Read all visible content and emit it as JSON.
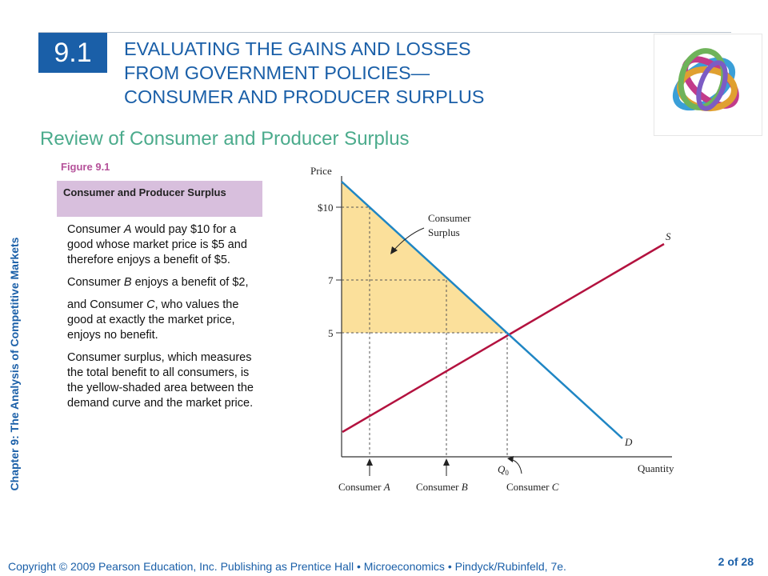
{
  "header": {
    "section_number": "9.1",
    "title_lines": [
      "EVALUATING THE GAINS AND LOSSES",
      "FROM GOVERNMENT POLICIES—",
      "CONSUMER AND PRODUCER SURPLUS"
    ],
    "subtitle": "Review of Consumer and Producer Surplus"
  },
  "sidebar": {
    "chapter_label": "Chapter 9:  The Analysis of Competitive Markets"
  },
  "figure": {
    "label": "Figure 9.1",
    "caption": "Consumer and Producer Surplus",
    "paragraphs": [
      "Consumer A would pay $10 for a good whose market price is $5 and therefore enjoys a benefit of $5.",
      "Consumer B enjoys a benefit of $2,",
      "and Consumer C, who values the good at exactly the market price, enjoys no benefit.",
      "Consumer surplus, which measures the total benefit to all consumers, is the yellow-shaded area between the demand curve and the market price."
    ]
  },
  "diagram": {
    "axis_y_label": "Price",
    "axis_x_label": "Quantity",
    "price_ticks": [
      "$10",
      "7",
      "5"
    ],
    "surplus_label_line1": "Consumer",
    "surplus_label_line2": "Surplus",
    "supply_label": "S",
    "demand_label": "D",
    "q0_label": "Q",
    "q0_sub": "0",
    "consumer_a": "Consumer",
    "consumer_a_letter": "A",
    "consumer_b": "Consumer",
    "consumer_b_letter": "B",
    "consumer_c": "Consumer",
    "consumer_c_letter": "C",
    "colors": {
      "demand": "#1f86c4",
      "supply": "#b3123f",
      "surplus_fill": "#fbe09b"
    }
  },
  "footer": {
    "copyright": "Copyright © 2009 Pearson Education, Inc. Publishing as Prentice Hall  •  Microeconomics  •  Pindyck/Rubinfeld, 7e.",
    "page": "2 of 28"
  }
}
